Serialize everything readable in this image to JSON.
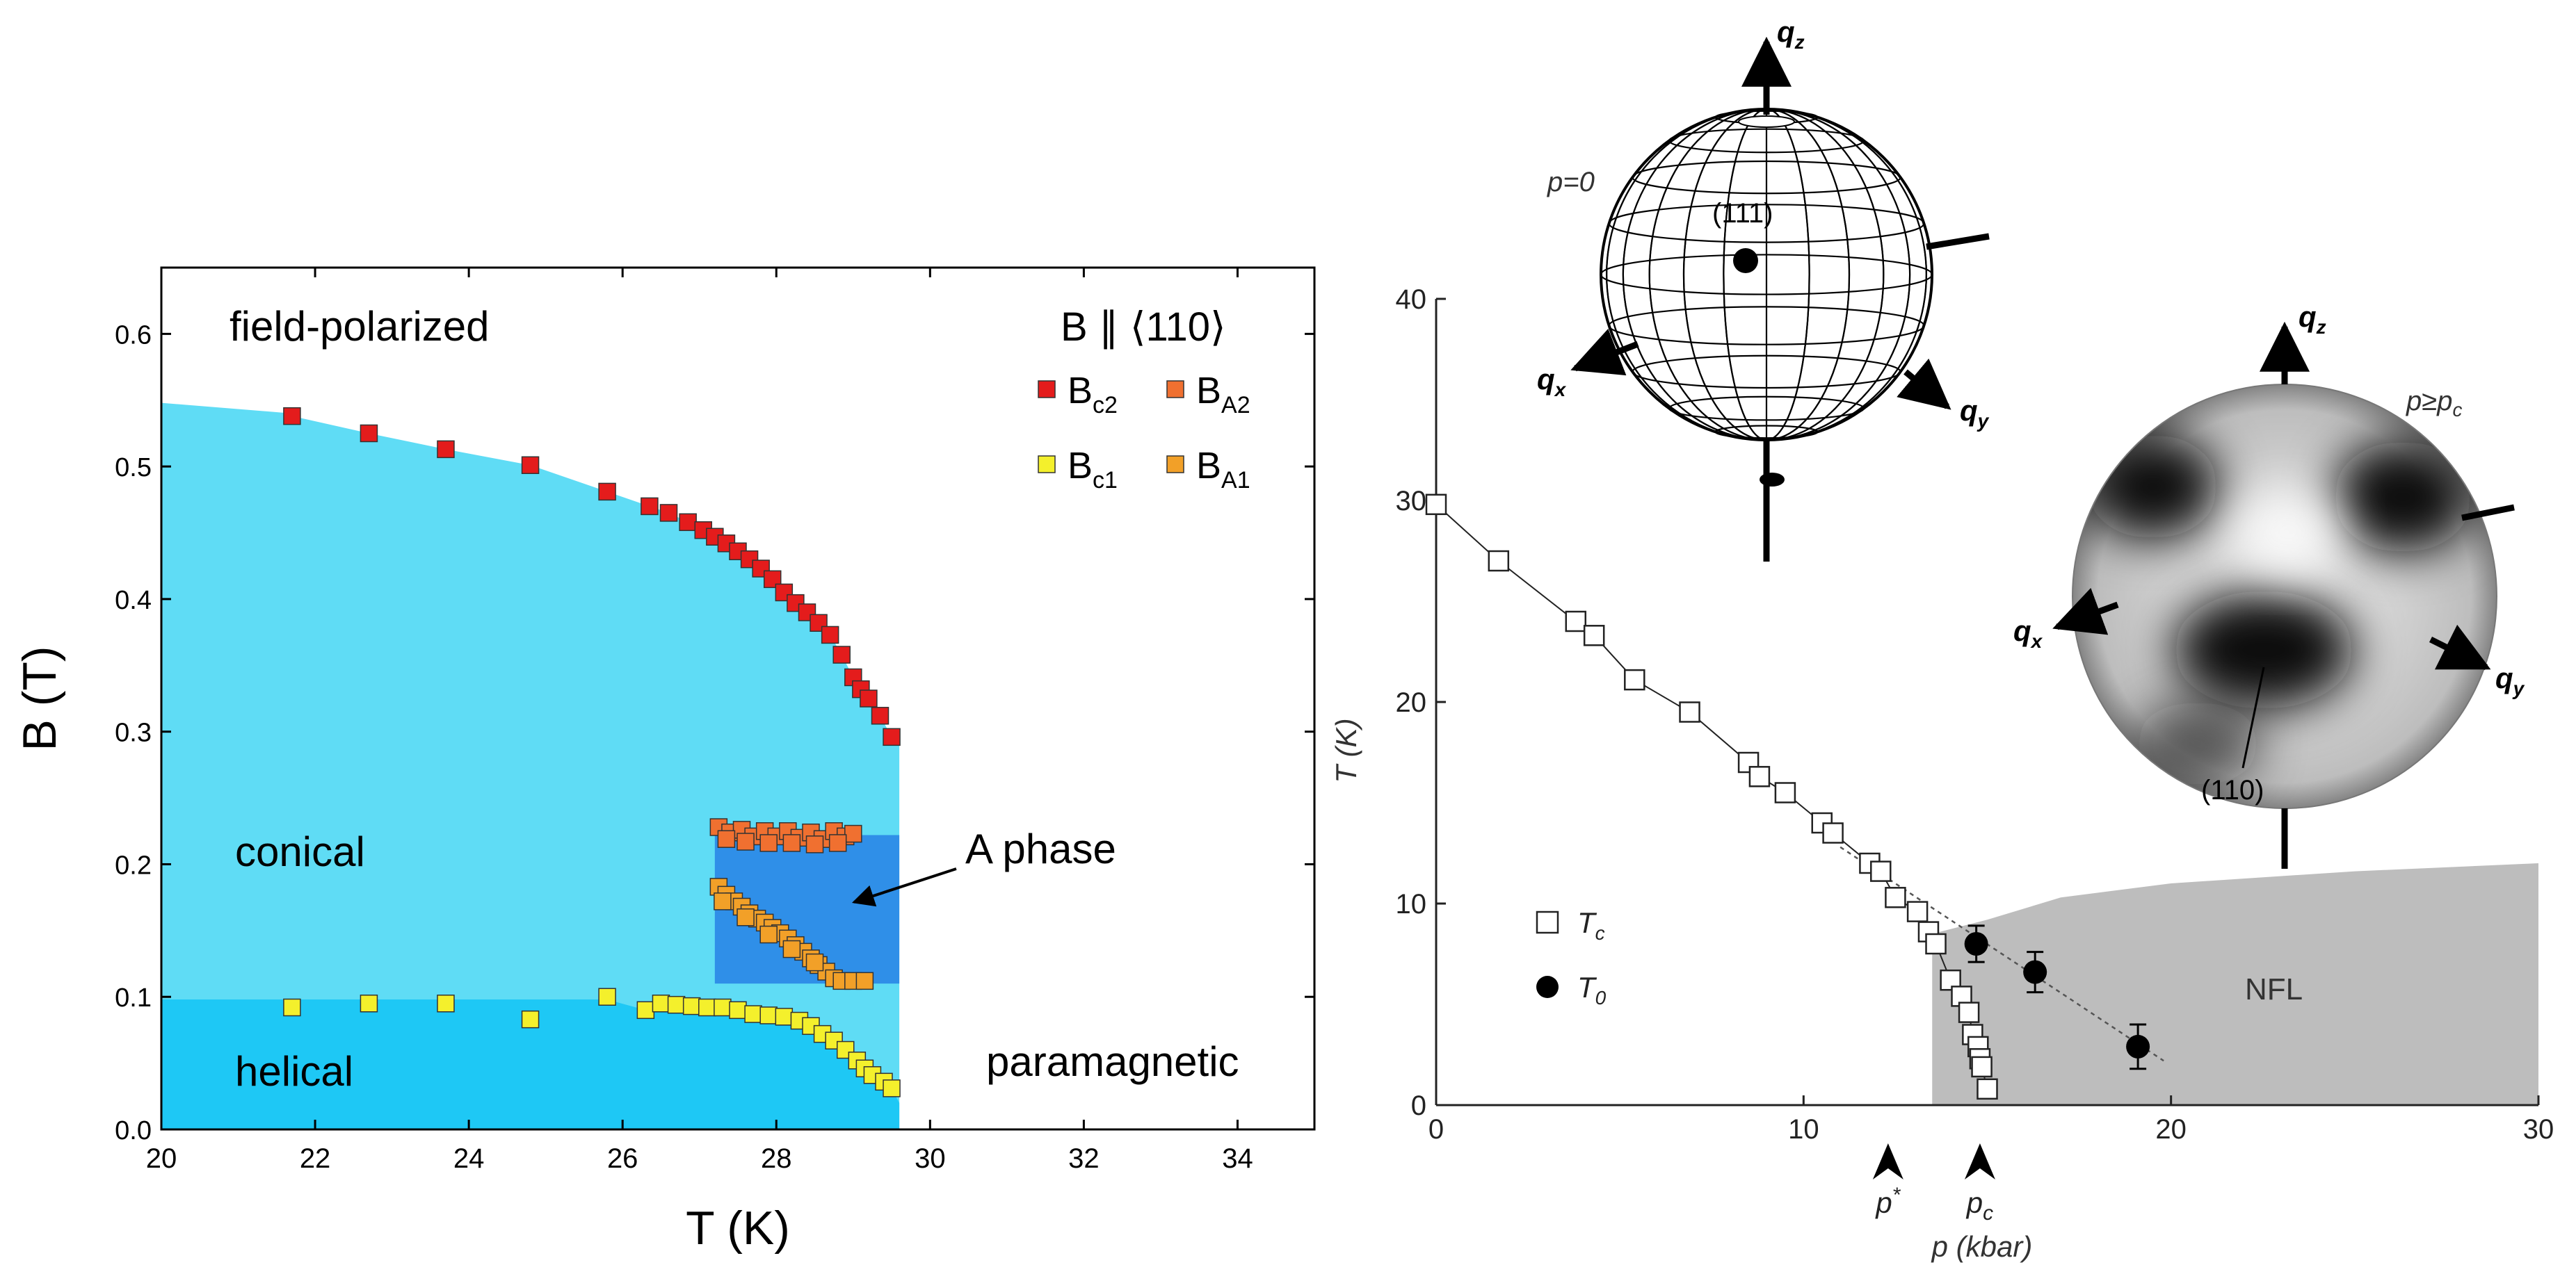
{
  "chart_data": [
    {
      "type": "scatter",
      "panel": "left",
      "xlabel": "T (K)",
      "ylabel": "B (T)",
      "xlim": [
        20,
        35
      ],
      "ylim": [
        0.0,
        0.65
      ],
      "xticks": [
        20,
        22,
        24,
        26,
        28,
        30,
        32,
        34
      ],
      "yticks": [
        0.0,
        0.1,
        0.2,
        0.3,
        0.4,
        0.5,
        0.6
      ],
      "xtick_labels": [
        "20",
        "22",
        "24",
        "26",
        "28",
        "30",
        "32",
        "34"
      ],
      "ytick_labels": [
        "0.0",
        "0.1",
        "0.2",
        "0.3",
        "0.4",
        "0.5",
        "0.6"
      ],
      "legend_title": "B ∥ ⟨110⟩",
      "legend_position": "top-right",
      "regions": [
        {
          "name": "conical",
          "color": "#5fdcf5"
        },
        {
          "name": "helical",
          "color": "#1ec8f5"
        },
        {
          "name": "A phase",
          "color": "#2f8fe8"
        }
      ],
      "region_labels": {
        "field_polarized": "field-polarized",
        "conical": "conical",
        "helical": "helical",
        "paramagnetic": "paramagnetic",
        "a_phase": "A phase"
      },
      "series": [
        {
          "name": "Bc2",
          "base": "B",
          "sub": "c2",
          "color": "#e41c1c",
          "points": [
            [
              21.7,
              0.538
            ],
            [
              22.7,
              0.525
            ],
            [
              23.7,
              0.513
            ],
            [
              24.8,
              0.501
            ],
            [
              25.8,
              0.481
            ],
            [
              26.35,
              0.47
            ],
            [
              26.6,
              0.465
            ],
            [
              26.85,
              0.458
            ],
            [
              27.05,
              0.452
            ],
            [
              27.2,
              0.447
            ],
            [
              27.35,
              0.442
            ],
            [
              27.5,
              0.436
            ],
            [
              27.65,
              0.43
            ],
            [
              27.8,
              0.423
            ],
            [
              27.95,
              0.415
            ],
            [
              28.1,
              0.405
            ],
            [
              28.25,
              0.397
            ],
            [
              28.4,
              0.39
            ],
            [
              28.55,
              0.382
            ],
            [
              28.7,
              0.373
            ],
            [
              28.85,
              0.358
            ],
            [
              29.0,
              0.341
            ],
            [
              29.1,
              0.332
            ],
            [
              29.2,
              0.325
            ],
            [
              29.35,
              0.312
            ],
            [
              29.5,
              0.296
            ]
          ]
        },
        {
          "name": "Bc1",
          "base": "B",
          "sub": "c1",
          "color": "#f4f02c",
          "points": [
            [
              21.7,
              0.092
            ],
            [
              22.7,
              0.095
            ],
            [
              23.7,
              0.095
            ],
            [
              24.8,
              0.083
            ],
            [
              25.8,
              0.1
            ],
            [
              26.3,
              0.09
            ],
            [
              26.5,
              0.095
            ],
            [
              26.7,
              0.094
            ],
            [
              26.9,
              0.093
            ],
            [
              27.1,
              0.092
            ],
            [
              27.3,
              0.092
            ],
            [
              27.5,
              0.09
            ],
            [
              27.7,
              0.087
            ],
            [
              27.9,
              0.086
            ],
            [
              28.1,
              0.085
            ],
            [
              28.3,
              0.082
            ],
            [
              28.45,
              0.078
            ],
            [
              28.6,
              0.072
            ],
            [
              28.75,
              0.067
            ],
            [
              28.9,
              0.06
            ],
            [
              29.05,
              0.052
            ],
            [
              29.15,
              0.046
            ],
            [
              29.25,
              0.041
            ],
            [
              29.4,
              0.036
            ],
            [
              29.5,
              0.031
            ]
          ]
        },
        {
          "name": "BA2",
          "base": "B",
          "sub": "A2",
          "color": "#f07030",
          "points": [
            [
              27.25,
              0.228
            ],
            [
              27.4,
              0.224
            ],
            [
              27.55,
              0.226
            ],
            [
              27.7,
              0.221
            ],
            [
              27.85,
              0.225
            ],
            [
              28.0,
              0.221
            ],
            [
              28.15,
              0.225
            ],
            [
              28.3,
              0.22
            ],
            [
              28.45,
              0.224
            ],
            [
              28.6,
              0.219
            ],
            [
              28.75,
              0.225
            ],
            [
              28.9,
              0.221
            ],
            [
              29.0,
              0.223
            ],
            [
              27.35,
              0.219
            ],
            [
              27.6,
              0.217
            ],
            [
              27.9,
              0.216
            ],
            [
              28.2,
              0.216
            ],
            [
              28.5,
              0.215
            ],
            [
              28.8,
              0.216
            ]
          ]
        },
        {
          "name": "BA1",
          "base": "B",
          "sub": "A1",
          "color": "#f2a028",
          "points": [
            [
              27.25,
              0.183
            ],
            [
              27.35,
              0.177
            ],
            [
              27.45,
              0.172
            ],
            [
              27.55,
              0.168
            ],
            [
              27.65,
              0.163
            ],
            [
              27.75,
              0.159
            ],
            [
              27.85,
              0.156
            ],
            [
              27.95,
              0.152
            ],
            [
              28.05,
              0.148
            ],
            [
              28.15,
              0.144
            ],
            [
              28.25,
              0.139
            ],
            [
              28.35,
              0.134
            ],
            [
              28.45,
              0.129
            ],
            [
              28.55,
              0.124
            ],
            [
              28.65,
              0.119
            ],
            [
              28.75,
              0.114
            ],
            [
              28.85,
              0.112
            ],
            [
              29.0,
              0.112
            ],
            [
              29.15,
              0.112
            ],
            [
              27.3,
              0.172
            ],
            [
              27.6,
              0.16
            ],
            [
              27.9,
              0.147
            ],
            [
              28.2,
              0.136
            ],
            [
              28.5,
              0.126
            ]
          ]
        }
      ]
    },
    {
      "type": "scatter",
      "panel": "right",
      "xlabel": "p (kbar)",
      "ylabel": "T (K)",
      "xlim": [
        0,
        30
      ],
      "ylim": [
        0,
        40
      ],
      "xticks": [
        0,
        10,
        20,
        30
      ],
      "yticks": [
        0,
        10,
        20,
        30,
        40
      ],
      "xtick_labels": [
        "0",
        "10",
        "20",
        "30"
      ],
      "ytick_labels": [
        "0",
        "10",
        "20",
        "30",
        "40"
      ],
      "legend_position": "lower-left",
      "nfl_label": "NFL",
      "nfl_boundary": [
        [
          13.5,
          8.5
        ],
        [
          15,
          9.2
        ],
        [
          17,
          10.3
        ],
        [
          20,
          11.0
        ],
        [
          25,
          11.6
        ],
        [
          30,
          12.0
        ]
      ],
      "arrows": [
        {
          "label": "p*",
          "base": "p",
          "sup": "*",
          "x": 12.3
        },
        {
          "label": "pc",
          "base": "p",
          "sub": "c",
          "x": 14.8
        }
      ],
      "series": [
        {
          "name": "Tc",
          "base": "T",
          "sub": "c",
          "marker": "open-square",
          "points": [
            [
              0,
              29.8
            ],
            [
              1.7,
              27.0
            ],
            [
              3.8,
              24.0
            ],
            [
              4.3,
              23.3
            ],
            [
              5.4,
              21.1
            ],
            [
              6.9,
              19.5
            ],
            [
              8.5,
              17.0
            ],
            [
              8.8,
              16.3
            ],
            [
              9.5,
              15.5
            ],
            [
              10.5,
              14.0
            ],
            [
              10.8,
              13.5
            ],
            [
              11.8,
              12.0
            ],
            [
              12.1,
              11.6
            ],
            [
              12.5,
              10.3
            ],
            [
              13.1,
              9.6
            ],
            [
              13.4,
              8.6
            ],
            [
              13.6,
              8.0
            ],
            [
              14.0,
              6.2
            ],
            [
              14.3,
              5.4
            ],
            [
              14.5,
              4.6
            ],
            [
              14.6,
              3.5
            ],
            [
              14.75,
              2.9
            ],
            [
              14.8,
              2.3
            ],
            [
              14.85,
              1.9
            ],
            [
              15.0,
              0.8
            ]
          ]
        },
        {
          "name": "T0",
          "base": "T",
          "sub": "0",
          "marker": "filled-circle",
          "points": [
            [
              14.7,
              8.0
            ],
            [
              16.3,
              6.6
            ],
            [
              19.1,
              2.9
            ]
          ],
          "errors": [
            0.9,
            1.0,
            1.1
          ]
        }
      ]
    }
  ],
  "sphere_p0": {
    "label": "p=0",
    "spot": "(111)",
    "axes": {
      "z": "q",
      "z_sub": "z",
      "x": "q",
      "x_sub": "x",
      "y": "q",
      "y_sub": "y"
    }
  },
  "sphere_pc": {
    "label_base": "p≥p",
    "label_sub": "c",
    "spot": "(110)",
    "axes": {
      "z": "q",
      "z_sub": "z",
      "x": "q",
      "x_sub": "x",
      "y": "q",
      "y_sub": "y"
    }
  }
}
